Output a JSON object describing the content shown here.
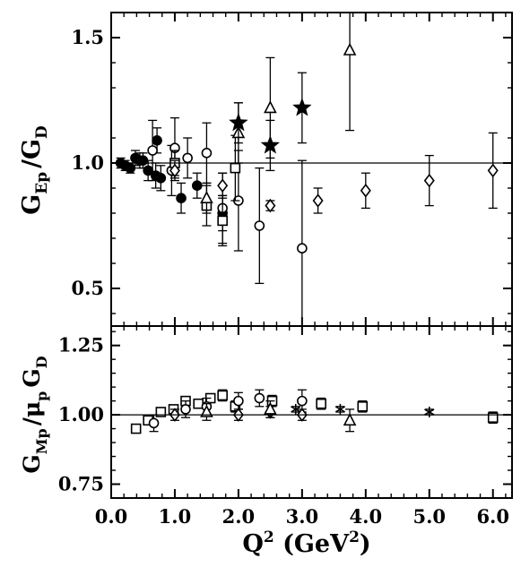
{
  "chart_data": [
    {
      "panel": "top",
      "type": "scatter",
      "ylabel": {
        "main": "G",
        "sub1": "Ep",
        "slash": "/G",
        "sub2": "D"
      },
      "xlim": [
        0.0,
        6.3
      ],
      "ylim": [
        0.35,
        1.6
      ],
      "yticks": [
        0.5,
        1.0,
        1.5
      ],
      "ytick_labels": [
        "0.5",
        "1.0",
        "1.5"
      ],
      "reference_line": 1.0,
      "series": [
        {
          "marker": "filled-circle",
          "points": [
            {
              "x": 0.15,
              "y": 1.0,
              "err": 0.02
            },
            {
              "x": 0.22,
              "y": 0.99,
              "err": 0.02
            },
            {
              "x": 0.3,
              "y": 0.98,
              "err": 0.02
            },
            {
              "x": 0.38,
              "y": 1.02,
              "err": 0.03
            },
            {
              "x": 0.45,
              "y": 1.01,
              "err": 0.03
            },
            {
              "x": 0.5,
              "y": 1.01,
              "err": 0.03
            },
            {
              "x": 0.58,
              "y": 0.97,
              "err": 0.04
            },
            {
              "x": 0.7,
              "y": 0.95,
              "err": 0.05
            },
            {
              "x": 0.72,
              "y": 1.09,
              "err": 0.05
            },
            {
              "x": 0.78,
              "y": 0.94,
              "err": 0.05
            },
            {
              "x": 1.1,
              "y": 0.86,
              "err": 0.06
            },
            {
              "x": 1.35,
              "y": 0.91,
              "err": 0.05
            },
            {
              "x": 1.75,
              "y": 0.8,
              "err": 0.07
            }
          ]
        },
        {
          "marker": "open-circle",
          "points": [
            {
              "x": 0.65,
              "y": 1.05,
              "err": 0.12
            },
            {
              "x": 0.95,
              "y": 0.97,
              "err": 0.1
            },
            {
              "x": 1.0,
              "y": 1.06,
              "err": 0.12
            },
            {
              "x": 1.2,
              "y": 1.02,
              "err": 0.08
            },
            {
              "x": 1.5,
              "y": 1.04,
              "err": 0.12
            },
            {
              "x": 1.75,
              "y": 0.82,
              "err": 0.14
            },
            {
              "x": 2.0,
              "y": 0.85,
              "err": 0.2
            },
            {
              "x": 2.33,
              "y": 0.75,
              "err": 0.23
            },
            {
              "x": 3.0,
              "y": 0.66,
              "err": 0.35
            }
          ]
        },
        {
          "marker": "open-square",
          "points": [
            {
              "x": 1.0,
              "y": 1.0,
              "err": 0.05
            },
            {
              "x": 1.5,
              "y": 0.83,
              "err": 0.08
            },
            {
              "x": 1.75,
              "y": 0.77,
              "err": 0.1
            },
            {
              "x": 1.95,
              "y": 0.98,
              "err": 0.13
            }
          ]
        },
        {
          "marker": "open-triangle",
          "points": [
            {
              "x": 1.5,
              "y": 0.86,
              "err": 0.06
            },
            {
              "x": 2.0,
              "y": 1.12,
              "err": 0.12
            },
            {
              "x": 2.5,
              "y": 1.22,
              "err": 0.2
            },
            {
              "x": 3.75,
              "y": 1.45,
              "err": 0.32
            }
          ]
        },
        {
          "marker": "open-diamond",
          "points": [
            {
              "x": 1.0,
              "y": 0.97,
              "err": 0.04
            },
            {
              "x": 1.75,
              "y": 0.91,
              "err": 0.05
            },
            {
              "x": 2.5,
              "y": 0.83,
              "err": 0.02
            },
            {
              "x": 3.25,
              "y": 0.85,
              "err": 0.05
            },
            {
              "x": 4.0,
              "y": 0.89,
              "err": 0.07
            },
            {
              "x": 5.0,
              "y": 0.93,
              "err": 0.1
            },
            {
              "x": 6.0,
              "y": 0.97,
              "err": 0.15
            }
          ]
        },
        {
          "marker": "filled-star",
          "points": [
            {
              "x": 2.0,
              "y": 1.16,
              "err": 0.08
            },
            {
              "x": 2.5,
              "y": 1.07,
              "err": 0.1
            },
            {
              "x": 3.0,
              "y": 1.22,
              "err": 0.14
            }
          ]
        }
      ]
    },
    {
      "panel": "bottom",
      "type": "scatter",
      "ylabel": {
        "main": "G",
        "sub1": "Mp",
        "slash": "/μ",
        "sub2": "p",
        "main2": "G",
        "sub3": "D"
      },
      "xlim": [
        0.0,
        6.3
      ],
      "ylim": [
        0.7,
        1.32
      ],
      "yticks": [
        0.75,
        1.0,
        1.25
      ],
      "ytick_labels": [
        "0.75",
        "1.00",
        "1.25"
      ],
      "reference_line": 1.0,
      "xticks": [
        0.0,
        1.0,
        2.0,
        3.0,
        4.0,
        5.0,
        6.0
      ],
      "xtick_labels": [
        "0.0",
        "1.0",
        "2.0",
        "3.0",
        "4.0",
        "5.0",
        "6.0"
      ],
      "xlabel": {
        "main": "Q",
        "sup": "2",
        "unit_open": " (GeV",
        "unit_sup": "2",
        "unit_close": ")"
      },
      "series": [
        {
          "marker": "open-square",
          "points": [
            {
              "x": 0.39,
              "y": 0.95,
              "err": 0.01
            },
            {
              "x": 0.58,
              "y": 0.98,
              "err": 0.01
            },
            {
              "x": 0.78,
              "y": 1.01,
              "err": 0.01
            },
            {
              "x": 0.98,
              "y": 1.02,
              "err": 0.01
            },
            {
              "x": 1.17,
              "y": 1.05,
              "err": 0.01
            },
            {
              "x": 1.37,
              "y": 1.04,
              "err": 0.01
            },
            {
              "x": 1.56,
              "y": 1.06,
              "err": 0.01
            },
            {
              "x": 1.75,
              "y": 1.07,
              "err": 0.02
            },
            {
              "x": 1.95,
              "y": 1.03,
              "err": 0.02
            },
            {
              "x": 2.53,
              "y": 1.05,
              "err": 0.02
            },
            {
              "x": 3.3,
              "y": 1.04,
              "err": 0.02
            },
            {
              "x": 3.95,
              "y": 1.03,
              "err": 0.02
            },
            {
              "x": 6.0,
              "y": 0.99,
              "err": 0.02
            }
          ]
        },
        {
          "marker": "open-circle",
          "points": [
            {
              "x": 0.67,
              "y": 0.97,
              "err": 0.03
            },
            {
              "x": 1.17,
              "y": 1.02,
              "err": 0.03
            },
            {
              "x": 1.5,
              "y": 1.03,
              "err": 0.03
            },
            {
              "x": 2.0,
              "y": 1.05,
              "err": 0.03
            },
            {
              "x": 2.33,
              "y": 1.06,
              "err": 0.03
            },
            {
              "x": 3.0,
              "y": 1.05,
              "err": 0.04
            }
          ]
        },
        {
          "marker": "open-diamond",
          "points": [
            {
              "x": 1.0,
              "y": 1.0,
              "err": 0.02
            },
            {
              "x": 2.0,
              "y": 1.0,
              "err": 0.02
            },
            {
              "x": 2.5,
              "y": 1.01,
              "err": 0.02
            },
            {
              "x": 3.0,
              "y": 1.0,
              "err": 0.02
            }
          ]
        },
        {
          "marker": "open-triangle",
          "points": [
            {
              "x": 1.5,
              "y": 1.01,
              "err": 0.03
            },
            {
              "x": 2.5,
              "y": 1.02,
              "err": 0.03
            },
            {
              "x": 3.75,
              "y": 0.98,
              "err": 0.04
            }
          ]
        },
        {
          "marker": "asterisk",
          "points": [
            {
              "x": 2.9,
              "y": 1.02,
              "err": 0.01
            },
            {
              "x": 3.6,
              "y": 1.02,
              "err": 0.01
            },
            {
              "x": 5.0,
              "y": 1.01,
              "err": 0.01
            }
          ]
        }
      ]
    }
  ]
}
